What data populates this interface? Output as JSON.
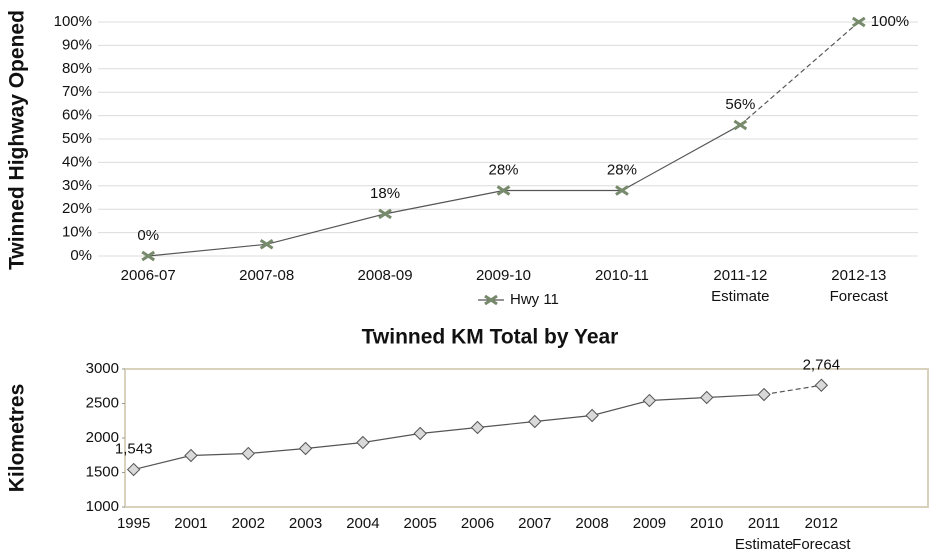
{
  "chart_data": [
    {
      "type": "line",
      "y_label": "Twinned Highway Opened",
      "categories": [
        "2006-07",
        "2007-08",
        "2008-09",
        "2009-10",
        "2010-11",
        "2011-12\nEstimate",
        "2012-13\nForecast"
      ],
      "series": [
        {
          "name": "Hwy 11",
          "color": "#778a6b",
          "marker": "x",
          "values": [
            0,
            5,
            18,
            28,
            28,
            56,
            100
          ],
          "value_labels": [
            "0%",
            null,
            "18%",
            "28%",
            "28%",
            "56%",
            "100%"
          ]
        }
      ],
      "dashed_from": 5,
      "ylim": [
        0,
        100
      ],
      "yticks": [
        {
          "value": 0,
          "label": "0%"
        },
        {
          "value": 10,
          "label": "10%"
        },
        {
          "value": 20,
          "label": "20%"
        },
        {
          "value": 30,
          "label": "30%"
        },
        {
          "value": 40,
          "label": "40%"
        },
        {
          "value": 50,
          "label": "50%"
        },
        {
          "value": 60,
          "label": "60%"
        },
        {
          "value": 70,
          "label": "70%"
        },
        {
          "value": 80,
          "label": "80%"
        },
        {
          "value": 90,
          "label": "90%"
        },
        {
          "value": 100,
          "label": "100%"
        }
      ],
      "grid": true,
      "legend": "bottom"
    },
    {
      "type": "line",
      "title": "Twinned KM Total by Year",
      "y_label": "Kilometres",
      "categories": [
        "1995",
        "2001",
        "2002",
        "2003",
        "2004",
        "2005",
        "2006",
        "2007",
        "2008",
        "2009",
        "2010",
        "2011\nEstimate",
        "2012\nForecast"
      ],
      "series": [
        {
          "color": "#d9d9d9",
          "marker": "diamond",
          "values": [
            1543,
            1746,
            1775,
            1848,
            1935,
            2065,
            2152,
            2239,
            2326,
            2543,
            2587,
            2630,
            2764
          ],
          "value_labels": [
            "1,543",
            null,
            null,
            null,
            null,
            null,
            null,
            null,
            null,
            null,
            null,
            null,
            "2,764"
          ]
        }
      ],
      "dashed_from": 11,
      "ylim": [
        1000,
        3000
      ],
      "yticks": [
        1000,
        1500,
        2000,
        2500,
        3000
      ],
      "grid": false,
      "frame": true
    }
  ]
}
